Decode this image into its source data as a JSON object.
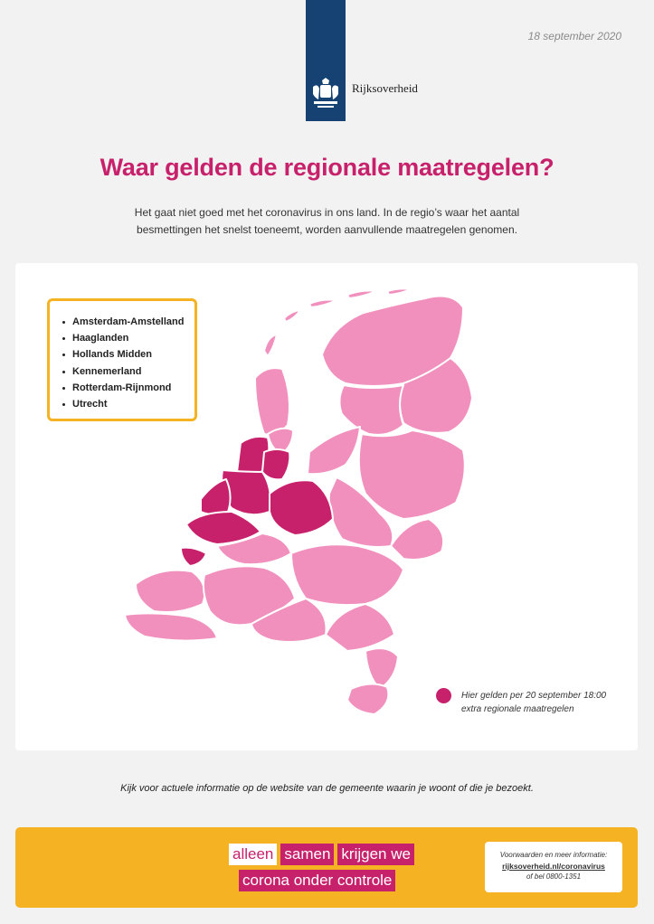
{
  "header": {
    "date": "18 september 2020",
    "logo_text": "Rijksoverheid",
    "logo_icon": "coat-of-arms-icon"
  },
  "title": "Waar gelden de regionale maatregelen?",
  "intro": "Het gaat niet goed met het coronavirus in ons land. In de regio’s waar het aantal besmettingen het snelst toeneemt, worden aanvullende maatregelen genomen.",
  "regions": [
    "Amsterdam-Amstelland",
    "Haaglanden",
    "Hollands Midden",
    "Kennemerland",
    "Rotterdam-Rijnmond",
    "Utrecht"
  ],
  "legend": {
    "text_line1": "Hier gelden per 20 september 18:00",
    "text_line2": "extra regionale maatregelen"
  },
  "footnote": "Kijk voor actuele informatie op de website van de gemeente waarin je woont of die je bezoekt.",
  "slogan": {
    "line1": [
      "alleen",
      "samen",
      "krijgen we"
    ],
    "line2": [
      "corona onder controle"
    ]
  },
  "contact": {
    "line1": "Voorwaarden en meer informatie:",
    "link": "rijksoverheid.nl/coronavirus",
    "line3": "of bel 0800-1351"
  },
  "colors": {
    "accent_magenta": "#c8216c",
    "region_pink": "#f190bd",
    "banner_yellow": "#f5b223",
    "logo_blue": "#154273"
  }
}
